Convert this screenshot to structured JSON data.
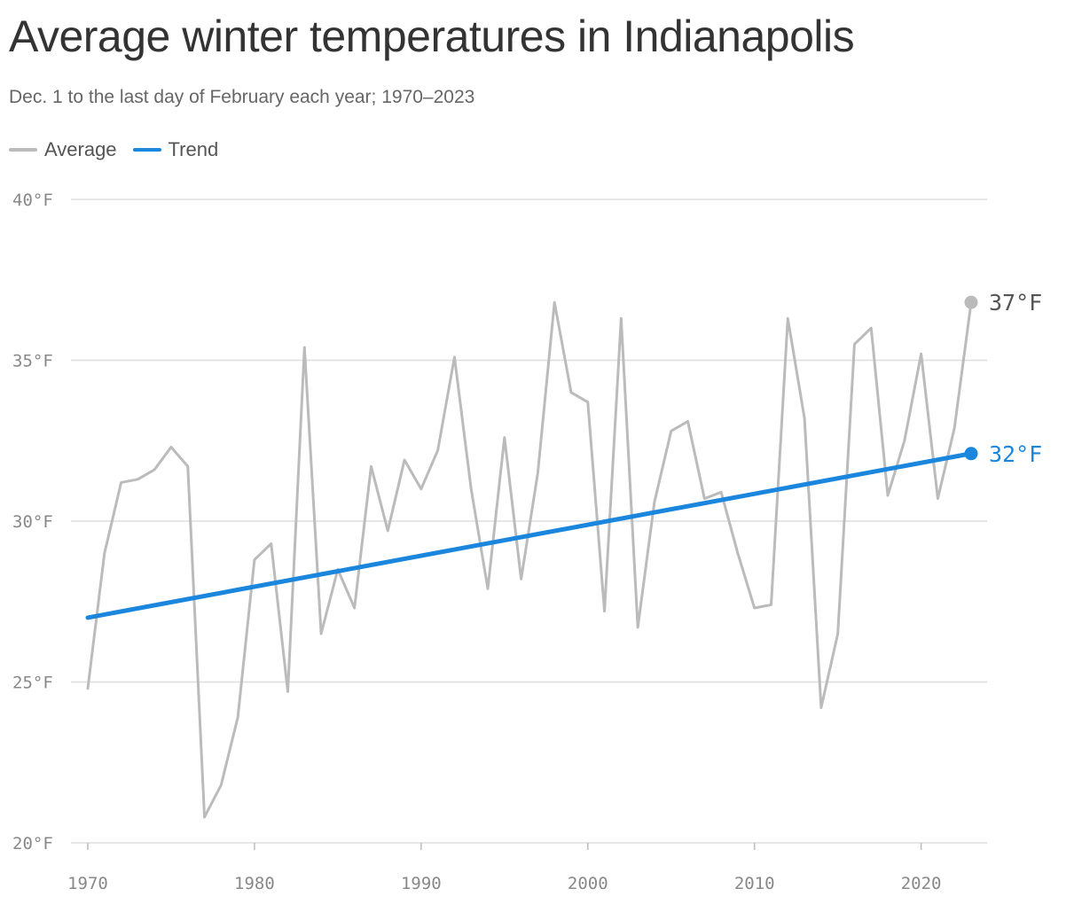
{
  "header": {
    "title": "Average winter temperatures in Indianapolis",
    "subtitle": "Dec. 1 to the last day of February each year; 1970–2023"
  },
  "legend": [
    {
      "label": "Average",
      "color": "#bbbbbb"
    },
    {
      "label": "Trend",
      "color": "#1a86de"
    }
  ],
  "chart_data": {
    "type": "line",
    "title": "Average winter temperatures in Indianapolis",
    "subtitle": "Dec. 1 to the last day of February each year; 1970–2023",
    "xlabel": "",
    "ylabel": "",
    "xlim": [
      1970,
      2023
    ],
    "ylim": [
      20,
      40
    ],
    "x_ticks": [
      1970,
      1980,
      1990,
      2000,
      2010,
      2020
    ],
    "y_ticks": [
      20,
      25,
      30,
      35,
      40
    ],
    "y_tick_labels": [
      "20°F",
      "25°F",
      "30°F",
      "35°F",
      "40°F"
    ],
    "grid": true,
    "legend_position": "top-left",
    "series": [
      {
        "name": "Average",
        "color": "#bbbbbb",
        "x": [
          1970,
          1971,
          1972,
          1973,
          1974,
          1975,
          1976,
          1977,
          1978,
          1979,
          1980,
          1981,
          1982,
          1983,
          1984,
          1985,
          1986,
          1987,
          1988,
          1989,
          1990,
          1991,
          1992,
          1993,
          1994,
          1995,
          1996,
          1997,
          1998,
          1999,
          2000,
          2001,
          2002,
          2003,
          2004,
          2005,
          2006,
          2007,
          2008,
          2009,
          2010,
          2011,
          2012,
          2013,
          2014,
          2015,
          2016,
          2017,
          2018,
          2019,
          2020,
          2021,
          2022,
          2023
        ],
        "values": [
          24.8,
          29.0,
          31.2,
          31.3,
          31.6,
          32.3,
          31.7,
          20.8,
          21.8,
          23.9,
          28.8,
          29.3,
          24.7,
          35.4,
          26.5,
          28.5,
          27.3,
          31.7,
          29.7,
          31.9,
          31.0,
          32.2,
          35.1,
          31.0,
          27.9,
          32.6,
          28.2,
          31.5,
          36.8,
          34.0,
          33.7,
          27.2,
          36.3,
          26.7,
          30.6,
          32.8,
          33.1,
          30.7,
          30.9,
          29.0,
          27.3,
          27.4,
          36.3,
          33.2,
          24.2,
          26.5,
          35.5,
          36.0,
          30.8,
          32.5,
          35.2,
          30.7,
          32.9,
          36.8
        ]
      },
      {
        "name": "Trend",
        "color": "#1a86de",
        "x": [
          1970,
          2023
        ],
        "values": [
          27.0,
          32.1
        ]
      }
    ],
    "end_labels": [
      {
        "series": "Average",
        "text": "37°F",
        "color": "#555555"
      },
      {
        "series": "Trend",
        "text": "32°F",
        "color": "#1a86de"
      }
    ]
  }
}
